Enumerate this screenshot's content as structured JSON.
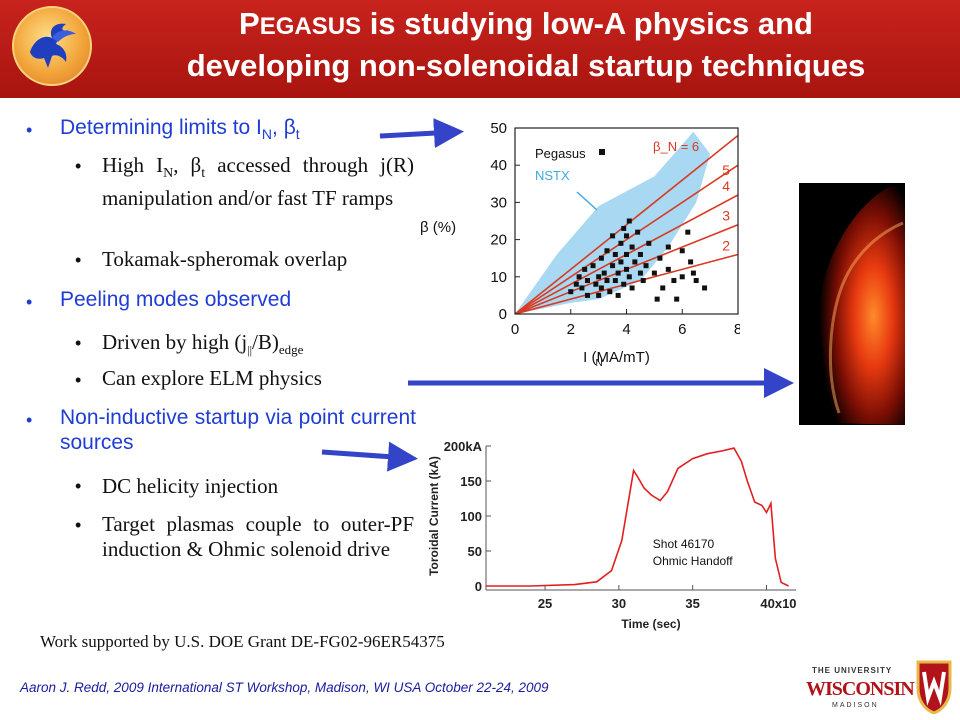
{
  "title": {
    "p": "P",
    "egasus": "EGASUS",
    "line1_rest": " is studying low-A physics and",
    "line2": "developing non-solenoidal startup techniques"
  },
  "bullets": {
    "b1_text": "Determining limits to I",
    "b1_sub": "N",
    "b1_comma": ", ",
    "b1_beta": "β",
    "b1_sub2": "t",
    "s1a_pre": "High I",
    "s1a_sub": "N",
    "s1a_mid": ", β",
    "s1a_sub2": "t",
    "s1a_rest": " accessed through j(R) manipulation and/or fast TF ramps",
    "s1b": "Tokamak-spheromak overlap",
    "b2": "Peeling modes observed",
    "s2a_pre": "Driven by high (j",
    "s2a_sub": "||",
    "s2a_mid": "/B)",
    "s2a_sub2": "edge",
    "s2b": "Can explore ELM physics",
    "b3": "Non-inductive startup via point current sources",
    "s3a": "DC helicity injection",
    "s3b": "Target plasmas couple to outer-PF induction & Ohmic solenoid drive"
  },
  "credit": "Work supported by U.S. DOE Grant DE-FG02-96ER54375",
  "footer": "Aaron J. Redd, 2009 International ST Workshop, Madison, WI USA  October 22-24, 2009",
  "university": {
    "the": "THE UNIVERSITY",
    "of": "of",
    "name": "WISCONSIN",
    "city": "MADISON"
  },
  "colors": {
    "title_bg": "#b81a15",
    "bullet_blue": "#1f3dd6",
    "arrow_blue": "#3344c8",
    "nstx_fill": "#a8d8f2",
    "beta_line": "#d93a22"
  },
  "chart_data": [
    {
      "type": "scatter",
      "xlabel": "I_N (MA/mT)",
      "ylabel": "β_t (%)",
      "xlim": [
        0,
        8
      ],
      "ylim": [
        0,
        50
      ],
      "xticks": [
        "0",
        "2",
        "4",
        "6",
        "8"
      ],
      "yticks": [
        "0",
        "10",
        "20",
        "30",
        "40",
        "50"
      ],
      "legend": {
        "pegasus": "Pegasus",
        "nstx": "NSTX"
      },
      "beta_n_title": "β_N = 6",
      "beta_n_lines": [
        {
          "label": "6",
          "slope": 6
        },
        {
          "label": "5",
          "slope": 5
        },
        {
          "label": "4",
          "slope": 4
        },
        {
          "label": "3",
          "slope": 3
        },
        {
          "label": "2",
          "slope": 2
        }
      ],
      "nstx_region": [
        [
          0,
          0
        ],
        [
          1.5,
          16
        ],
        [
          3,
          29
        ],
        [
          5,
          37
        ],
        [
          6.4,
          49
        ],
        [
          7,
          43
        ],
        [
          6.5,
          30
        ],
        [
          5.5,
          18
        ],
        [
          4.5,
          9
        ],
        [
          3,
          4
        ],
        [
          2,
          3
        ]
      ],
      "pegasus_points": [
        [
          2,
          6
        ],
        [
          2.2,
          8
        ],
        [
          2.3,
          10
        ],
        [
          2.4,
          7
        ],
        [
          2.5,
          12
        ],
        [
          2.6,
          5
        ],
        [
          2.6,
          9
        ],
        [
          2.8,
          13
        ],
        [
          2.9,
          8
        ],
        [
          3,
          10
        ],
        [
          3,
          5
        ],
        [
          3.1,
          15
        ],
        [
          3.1,
          7
        ],
        [
          3.2,
          11
        ],
        [
          3.3,
          9
        ],
        [
          3.3,
          17
        ],
        [
          3.4,
          6
        ],
        [
          3.5,
          13
        ],
        [
          3.5,
          21
        ],
        [
          3.6,
          9
        ],
        [
          3.6,
          16
        ],
        [
          3.7,
          11
        ],
        [
          3.7,
          5
        ],
        [
          3.8,
          19
        ],
        [
          3.8,
          14
        ],
        [
          3.9,
          23
        ],
        [
          3.9,
          8
        ],
        [
          4,
          12
        ],
        [
          4,
          21
        ],
        [
          4,
          16
        ],
        [
          4.1,
          25
        ],
        [
          4.1,
          10
        ],
        [
          4.2,
          18
        ],
        [
          4.2,
          7
        ],
        [
          4.3,
          14
        ],
        [
          4.4,
          22
        ],
        [
          4.5,
          11
        ],
        [
          4.5,
          16
        ],
        [
          4.6,
          9
        ],
        [
          4.7,
          13
        ],
        [
          4.8,
          19
        ],
        [
          5,
          11
        ],
        [
          5.1,
          4
        ],
        [
          5.2,
          15
        ],
        [
          5.3,
          7
        ],
        [
          5.5,
          12
        ],
        [
          5.5,
          18
        ],
        [
          5.7,
          9
        ],
        [
          5.8,
          4
        ],
        [
          6,
          17
        ],
        [
          6,
          10
        ],
        [
          6.2,
          22
        ],
        [
          6.3,
          14
        ],
        [
          6.4,
          11
        ],
        [
          6.5,
          9
        ],
        [
          6.8,
          7
        ]
      ]
    },
    {
      "type": "line",
      "xlabel": "Time (sec)",
      "ylabel": "Toroidal Current (kA)",
      "xlim": [
        21,
        42
      ],
      "ylim": [
        0,
        200
      ],
      "xticks": [
        "25",
        "30",
        "35",
        "40x10"
      ],
      "xtick_exp": "-3",
      "yticks": [
        "0",
        "50",
        "100",
        "150",
        "200kA"
      ],
      "annotation": [
        "Shot 46170",
        "Ohmic Handoff"
      ],
      "series": [
        {
          "x": [
            21,
            24,
            27,
            28.5,
            29.5,
            30.2,
            30.6,
            31.0,
            31.3,
            31.7,
            32.2,
            32.8,
            33.3,
            34,
            35,
            36,
            37,
            37.8,
            38.3,
            38.7,
            39.2,
            39.7,
            40.0,
            40.3,
            40.6,
            41,
            41.5
          ],
          "y": [
            0,
            0,
            2,
            6,
            22,
            65,
            115,
            165,
            155,
            140,
            130,
            122,
            135,
            168,
            182,
            189,
            193,
            197,
            178,
            150,
            120,
            115,
            105,
            118,
            40,
            5,
            0
          ]
        }
      ]
    }
  ]
}
